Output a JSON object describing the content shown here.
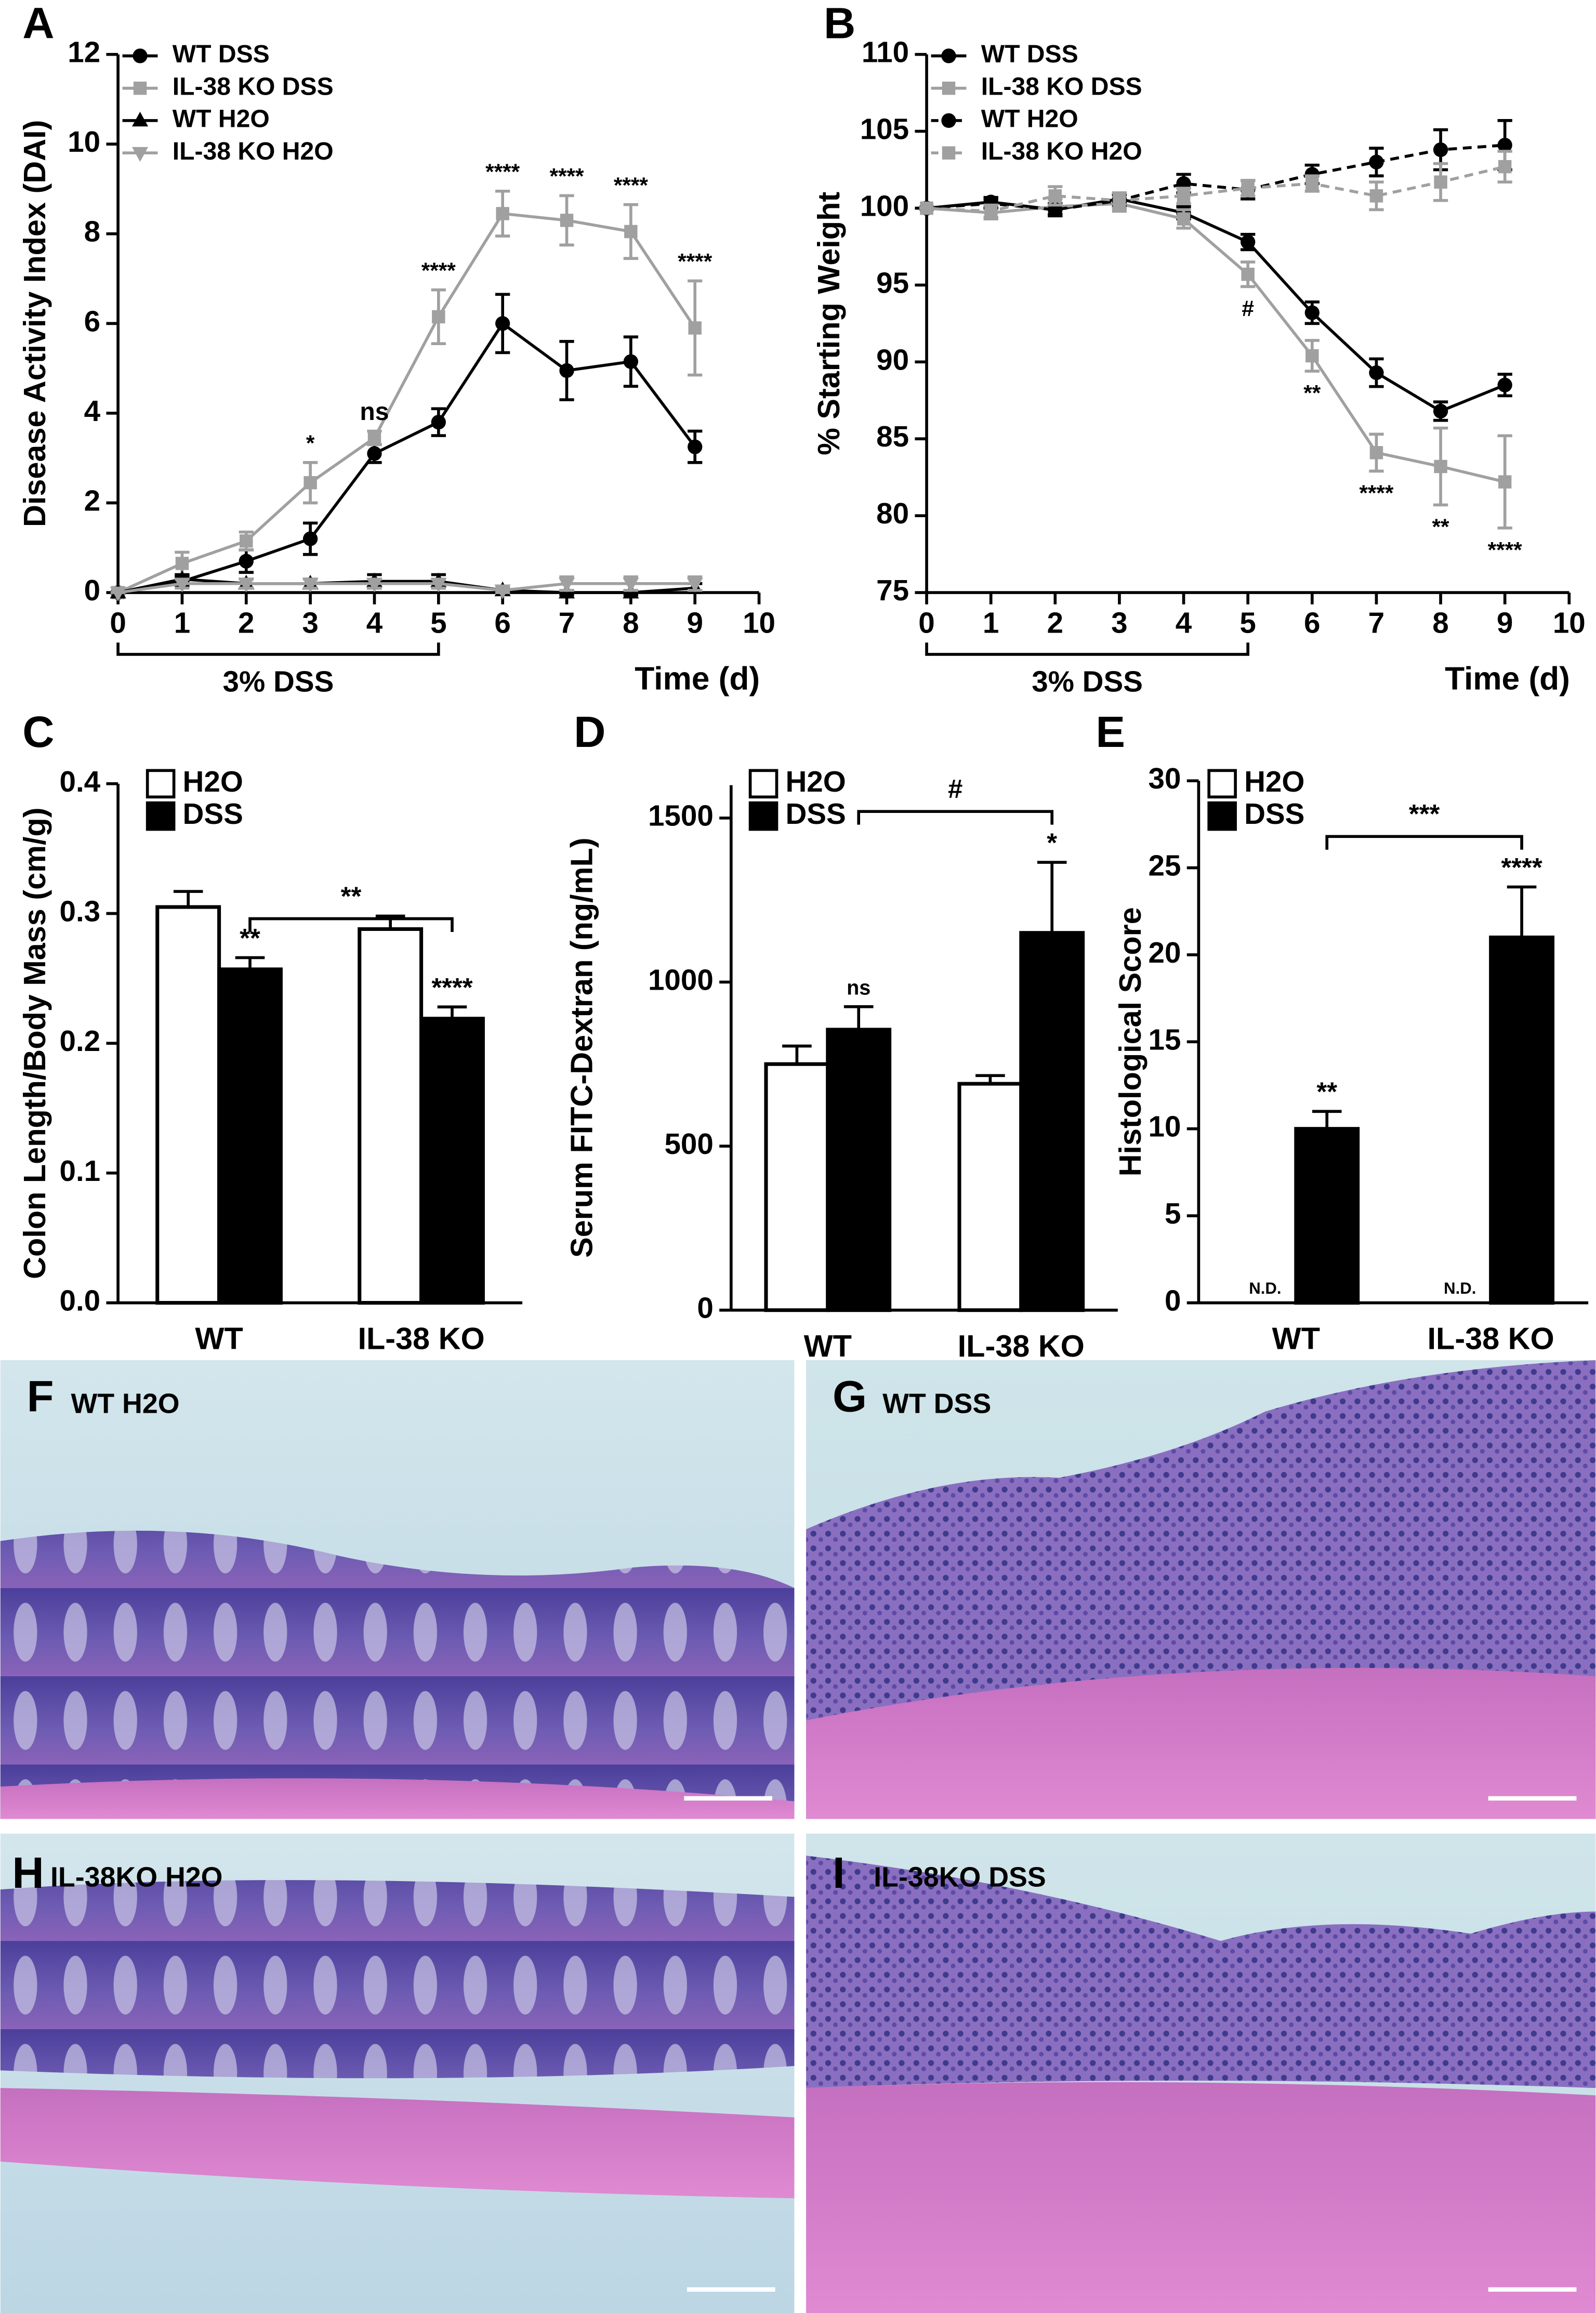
{
  "chart_data": [
    {
      "panel": "A",
      "type": "line",
      "ylabel": "Disease Activity Index  (DAI)",
      "xlabel": "Time (d)",
      "x": [
        0,
        1,
        2,
        3,
        4,
        5,
        6,
        7,
        8,
        9
      ],
      "xlim": [
        0,
        10
      ],
      "xticks": [
        0,
        1,
        2,
        3,
        4,
        5,
        6,
        7,
        8,
        9,
        10
      ],
      "ylim": [
        0,
        12
      ],
      "yticks": [
        0,
        2,
        4,
        6,
        8,
        10,
        12
      ],
      "legend": "upper left",
      "treatment": {
        "label": "3%  DSS",
        "range": [
          0,
          5
        ]
      },
      "significance": [
        null,
        null,
        null,
        "*",
        "ns",
        "****",
        "****",
        "****",
        "****",
        "****"
      ],
      "significance_position": "above",
      "series": [
        {
          "name": "WT DSS",
          "color": "#000000",
          "marker": "circle",
          "dash": false,
          "values": [
            0,
            0.25,
            0.7,
            1.2,
            3.1,
            3.8,
            6.0,
            4.95,
            5.15,
            3.25
          ],
          "errors": [
            0,
            0.1,
            0.25,
            0.35,
            0.2,
            0.3,
            0.65,
            0.65,
            0.55,
            0.35
          ]
        },
        {
          "name": "IL-38 KO DSS",
          "color": "#a0a0a0",
          "marker": "square",
          "dash": false,
          "values": [
            0,
            0.65,
            1.15,
            2.45,
            3.45,
            6.15,
            8.45,
            8.3,
            8.05,
            5.9
          ],
          "errors": [
            0,
            0.25,
            0.2,
            0.45,
            0.15,
            0.6,
            0.5,
            0.55,
            0.6,
            1.05
          ]
        },
        {
          "name": "WT H2O",
          "color": "#000000",
          "marker": "triangle",
          "dash": false,
          "values": [
            0,
            0.3,
            0.2,
            0.2,
            0.25,
            0.25,
            0.05,
            0,
            0,
            0.1
          ],
          "errors": [
            0,
            0.1,
            0.1,
            0.1,
            0.15,
            0.15,
            0.05,
            0.05,
            0.05,
            0.1
          ]
        },
        {
          "name": "IL-38 KO H2O",
          "color": "#a0a0a0",
          "marker": "triangle-down",
          "dash": false,
          "values": [
            0,
            0.2,
            0.2,
            0.2,
            0.2,
            0.2,
            0.05,
            0.2,
            0.2,
            0.2
          ],
          "errors": [
            0,
            0.1,
            0.1,
            0.1,
            0.1,
            0.1,
            0.05,
            0.15,
            0.15,
            0.15
          ]
        }
      ]
    },
    {
      "panel": "B",
      "type": "line",
      "ylabel": "% Starting Weight",
      "xlabel": "Time (d)",
      "x": [
        0,
        1,
        2,
        3,
        4,
        5,
        6,
        7,
        8,
        9
      ],
      "xlim": [
        0,
        10
      ],
      "xticks": [
        0,
        1,
        2,
        3,
        4,
        5,
        6,
        7,
        8,
        9,
        10
      ],
      "ylim": [
        75,
        110
      ],
      "yticks": [
        75,
        80,
        85,
        90,
        95,
        100,
        105,
        110
      ],
      "legend": "upper left",
      "treatment": {
        "label": "3%  DSS",
        "range": [
          0,
          5
        ]
      },
      "significance": [
        null,
        null,
        null,
        null,
        null,
        "#",
        "**",
        "****",
        "**",
        "****"
      ],
      "significance_position": "below",
      "series": [
        {
          "name": "WT DSS",
          "color": "#000000",
          "marker": "circle",
          "dash": false,
          "values": [
            100,
            100.4,
            99.9,
            100.6,
            99.7,
            97.8,
            93.2,
            89.3,
            86.8,
            88.5
          ],
          "errors": [
            0,
            0.3,
            0.4,
            0.3,
            0.4,
            0.5,
            0.7,
            0.9,
            0.6,
            0.7
          ]
        },
        {
          "name": "IL-38 KO DSS",
          "color": "#a0a0a0",
          "marker": "square",
          "dash": false,
          "values": [
            100,
            99.7,
            100.1,
            100.3,
            99.3,
            95.7,
            90.4,
            84.1,
            83.2,
            82.2
          ],
          "errors": [
            0,
            0.4,
            0.5,
            0.5,
            0.6,
            0.8,
            1.0,
            1.2,
            2.5,
            3.0
          ]
        },
        {
          "name": "WT H2O",
          "color": "#000000",
          "marker": "circle",
          "dash": true,
          "values": [
            100,
            100.3,
            99.9,
            100.5,
            101.6,
            101.2,
            102.2,
            103.0,
            103.8,
            104.1
          ],
          "errors": [
            0,
            0.3,
            0.3,
            0.4,
            0.6,
            0.6,
            0.6,
            0.9,
            1.3,
            1.6
          ]
        },
        {
          "name": "IL-38 KO H2O",
          "color": "#a0a0a0",
          "marker": "square",
          "dash": true,
          "values": [
            100,
            99.8,
            100.8,
            100.5,
            100.8,
            101.3,
            101.6,
            100.8,
            101.7,
            102.7
          ],
          "errors": [
            0,
            0.4,
            0.6,
            0.5,
            0.5,
            0.5,
            0.5,
            0.9,
            1.2,
            1.0
          ]
        }
      ]
    },
    {
      "panel": "C",
      "type": "bar",
      "ylabel": "Colon Length/Body Mass (cm/g)",
      "categories": [
        "WT",
        "IL-38 KO"
      ],
      "ylim": [
        0,
        0.4
      ],
      "yticks": [
        {
          "value": 0,
          "label": "0.0"
        },
        0.1,
        0.2,
        0.3,
        0.4
      ],
      "legend": "upper left",
      "comparison": {
        "label": "**",
        "y": 0.296,
        "series": 1
      },
      "series": [
        {
          "name": "H2O",
          "color": "#ffffff",
          "values": [
            0.305,
            0.288
          ],
          "errors": [
            0.012,
            0.01
          ]
        },
        {
          "name": "DSS",
          "color": "#000000",
          "values": [
            0.257,
            0.219
          ],
          "errors": [
            0.009,
            0.009
          ],
          "significance": [
            "**",
            "****"
          ]
        }
      ]
    },
    {
      "panel": "D",
      "type": "bar",
      "ylabel": "Serum FITC-Dextran (ng/mL)",
      "categories": [
        "WT",
        "IL-38 KO"
      ],
      "ylim": [
        0,
        1600
      ],
      "yticks": [
        0,
        500,
        1000,
        1500
      ],
      "legend": "upper left",
      "comparison": {
        "label": "#",
        "y": 1520,
        "series": 1
      },
      "series": [
        {
          "name": "H2O",
          "color": "#ffffff",
          "values": [
            750,
            690
          ],
          "errors": [
            55,
            25
          ]
        },
        {
          "name": "DSS",
          "color": "#000000",
          "values": [
            855,
            1150
          ],
          "errors": [
            70,
            215
          ],
          "significance": [
            "ns",
            "*"
          ]
        }
      ]
    },
    {
      "panel": "E",
      "type": "bar",
      "ylabel": "Histological Score",
      "categories": [
        "WT",
        "IL-38 KO"
      ],
      "ylim": [
        0,
        30
      ],
      "yticks": [
        0,
        5,
        10,
        15,
        20,
        25,
        30
      ],
      "legend": "upper left",
      "comparison": {
        "label": "***",
        "y": 26.8,
        "series": 1
      },
      "series": [
        {
          "name": "H2O",
          "color": "#ffffff",
          "values": [
            null,
            null
          ],
          "value_labels": [
            "N.D.",
            "N.D."
          ],
          "errors": [
            null,
            null
          ]
        },
        {
          "name": "DSS",
          "color": "#000000",
          "values": [
            10,
            21
          ],
          "errors": [
            1,
            2.9
          ],
          "significance": [
            "**",
            "****"
          ]
        }
      ]
    }
  ],
  "images": [
    {
      "panel": "F",
      "label": "WT H2O"
    },
    {
      "panel": "G",
      "label": "WT DSS"
    },
    {
      "panel": "H",
      "label": "IL-38KO H2O"
    },
    {
      "panel": "I",
      "label": "IL-38KO DSS"
    }
  ]
}
